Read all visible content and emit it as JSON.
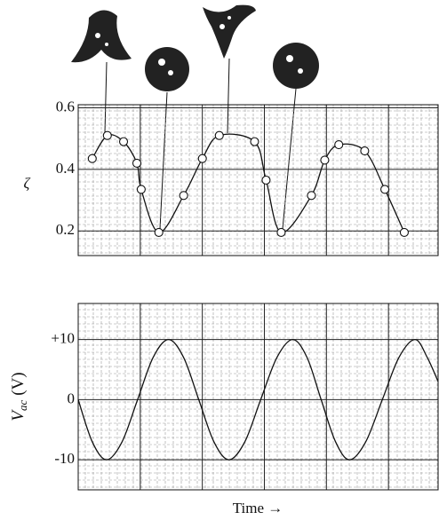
{
  "chart_data": [
    {
      "type": "line",
      "ylabel": "ζ",
      "markers": true,
      "grid": true,
      "color": "#111111",
      "xlim": [
        0,
        100
      ],
      "ylim": [
        0.12,
        0.61
      ],
      "yticks": [
        0.2,
        0.4,
        0.6
      ],
      "series": [
        {
          "color": "#111111",
          "x": [
            3.9,
            8.1,
            12.6,
            16.3,
            17.5,
            22.4,
            29.3,
            34.5,
            39.2,
            49.0,
            52.2,
            56.4,
            64.8,
            68.5,
            72.4,
            79.6,
            85.2,
            90.6
          ],
          "values": [
            0.435,
            0.51,
            0.49,
            0.42,
            0.335,
            0.195,
            0.315,
            0.435,
            0.51,
            0.49,
            0.365,
            0.195,
            0.315,
            0.43,
            0.48,
            0.46,
            0.335,
            0.195
          ]
        }
      ]
    },
    {
      "type": "line",
      "ylabel": [
        "V",
        "ac",
        "(V)"
      ],
      "xlabel": "Time →",
      "markers": false,
      "grid": true,
      "color": "#111111",
      "xlim": [
        0,
        100
      ],
      "ylim": [
        -15,
        16
      ],
      "yticks": [
        -10,
        0,
        {
          "value": 10,
          "label": "+10"
        }
      ],
      "series": [
        {
          "color": "#111111",
          "x": [
            0,
            3.9,
            7.9,
            12.2,
            16.5,
            20.8,
            25.1,
            29.3,
            33.5,
            37.7,
            41.9,
            46.3,
            50.7,
            55.2,
            59.6,
            63.6,
            67.5,
            71.5,
            75.4,
            79.9,
            84.5,
            89.1,
            93.6,
            97.0,
            100
          ],
          "values": [
            0,
            -7,
            -10,
            -7,
            0,
            7,
            10,
            7,
            0,
            -7,
            -10,
            -7,
            0,
            7,
            10,
            7,
            0,
            -7,
            -10,
            -7,
            0,
            7,
            10,
            7,
            3
          ]
        }
      ]
    }
  ]
}
